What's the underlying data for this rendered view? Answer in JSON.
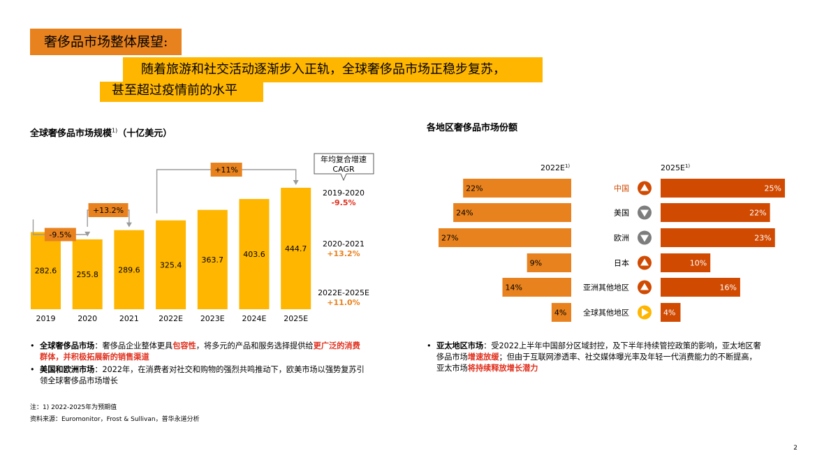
{
  "header": {
    "tag": "奢侈品市场整体展望:",
    "line1": "随着旅游和社交活动逐渐步入正轨，全球奢侈品市场正稳步复苏，",
    "line2": "甚至超过疫情前的水平"
  },
  "left": {
    "title": "全球奢侈品市场规模",
    "title_sup": "1)",
    "title_unit": "（十亿美元）"
  },
  "right": {
    "title": "各地区奢侈品市场份额"
  },
  "chart_data": [
    {
      "type": "bar",
      "categories": [
        "2019",
        "2020",
        "2021",
        "2022E",
        "2023E",
        "2024E",
        "2025E"
      ],
      "values": [
        282.6,
        255.8,
        289.6,
        325.4,
        363.7,
        403.6,
        444.7
      ],
      "value_labels": [
        "282.6",
        "255.8",
        "289.6",
        "325.4",
        "363.7",
        "403.6",
        "444.7"
      ],
      "bar_color": "#FFB600",
      "growth_arrows": [
        {
          "from": "2019",
          "to": "2020",
          "label": "-9.5%"
        },
        {
          "from": "2020",
          "to": "2021",
          "label": "+13.2%"
        },
        {
          "from": "2022E",
          "to": "2025E",
          "label": "+11%"
        }
      ],
      "cagr": {
        "header_line1": "年均复合增速",
        "header_line2": "CAGR",
        "items": [
          {
            "period": "2019-2020",
            "value": "-9.5%"
          },
          {
            "period": "2020-2021",
            "value": "+13.2%"
          },
          {
            "period": "2022E-2025E",
            "value": "+11.0%"
          }
        ]
      },
      "colors": {
        "negative": "#E0301E",
        "positive": "#E8821E",
        "box": "#E8821E"
      }
    },
    {
      "type": "bar",
      "orientation": "horizontal-butterfly",
      "categories": [
        "中国",
        "美国",
        "欧洲",
        "日本",
        "亚洲其他地区",
        "全球其他地区"
      ],
      "series": [
        {
          "name": "2022E",
          "name_sup": "1)",
          "values": [
            22,
            24,
            27,
            9,
            14,
            4
          ],
          "labels": [
            "22%",
            "24%",
            "27%",
            "9%",
            "14%",
            "4%"
          ],
          "color": "#E8821E"
        },
        {
          "name": "2025E",
          "name_sup": "1)",
          "values": [
            25,
            22,
            23,
            10,
            16,
            4
          ],
          "labels": [
            "25%",
            "22%",
            "23%",
            "10%",
            "16%",
            "4%"
          ],
          "color": "#D04A02"
        }
      ],
      "trend_icons": [
        {
          "name": "up-triangle-icon",
          "color": "#D04A02"
        },
        {
          "name": "down-triangle-icon",
          "color": "#7D7D7D"
        },
        {
          "name": "down-triangle-icon",
          "color": "#7D7D7D"
        },
        {
          "name": "up-triangle-icon",
          "color": "#D04A02"
        },
        {
          "name": "up-triangle-icon",
          "color": "#D04A02"
        },
        {
          "name": "right-triangle-icon",
          "color": "#FFB600"
        }
      ],
      "category_colors": [
        "#D04A02",
        "#000000",
        "#000000",
        "#000000",
        "#000000",
        "#000000"
      ]
    }
  ],
  "bullets_left": [
    {
      "p1": "全球奢侈品市场",
      "p2": "：奢侈品企业整体更具",
      "p3": "包容性",
      "p4": "，将多元的产品和服务选择提供给",
      "p5": "更广泛的消费",
      "p6": "群体，并积极拓展新的销售渠道"
    },
    {
      "p1": "美国和欧洲市场",
      "p2": "：2022年，在消费者对社交和购物的强烈共鸣推动下，欧美市场以强势复苏引",
      "p3": "领全球奢侈品市场增长"
    }
  ],
  "bullets_right": [
    {
      "p1": "亚太地区市场",
      "p2": "：受2022上半年中国部分区域封控，及下半年持续管控政策的影响，亚太地区奢",
      "p3": "侈品市场",
      "p4": "增速放缓",
      "p5": "；但由于互联网渗透率、社交媒体曝光率及年轻一代消费能力的不断提高，",
      "p6": "亚太市场",
      "p7": "将持续释放增长潜力"
    }
  ],
  "bullet_symbol": "•",
  "notes": {
    "line1": "注：1) 2022-2025年为预期值",
    "line2": "资料来源：Euromonitor，Frost & Sullivan，普华永道分析"
  },
  "page_number": "2"
}
